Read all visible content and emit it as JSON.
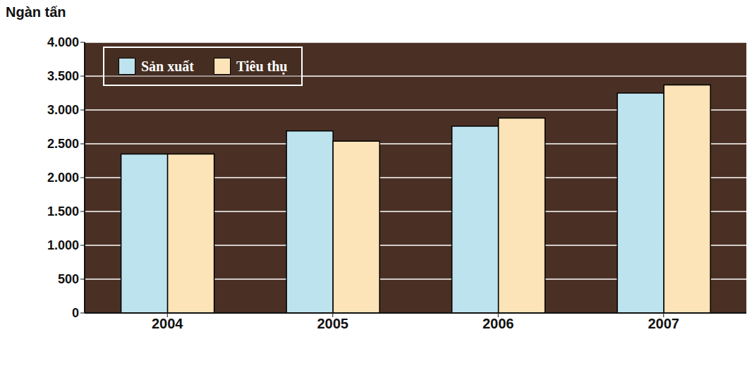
{
  "chart_data": {
    "type": "bar",
    "y_label": "Ngàn tấn",
    "categories": [
      "2004",
      "2005",
      "2006",
      "2007"
    ],
    "series": [
      {
        "name": "Sản xuất",
        "color": "#bde3ef",
        "values": [
          2350,
          2690,
          2760,
          3250
        ]
      },
      {
        "name": "Tiêu thụ",
        "color": "#fde3b8",
        "values": [
          2350,
          2540,
          2880,
          3370
        ]
      }
    ],
    "ylim": [
      0,
      4000
    ],
    "yticks": [
      0,
      500,
      {
        "value": 1000,
        "label": "1.000"
      },
      {
        "value": 1500,
        "label": "1.500"
      },
      {
        "value": 2000,
        "label": "2.000"
      },
      {
        "value": 2500,
        "label": "2.500"
      },
      {
        "value": 3000,
        "label": "3.000"
      },
      {
        "value": 3500,
        "label": "3.500"
      },
      {
        "value": 4000,
        "label": "4.000"
      }
    ],
    "grid": true,
    "legend": "upper left"
  }
}
